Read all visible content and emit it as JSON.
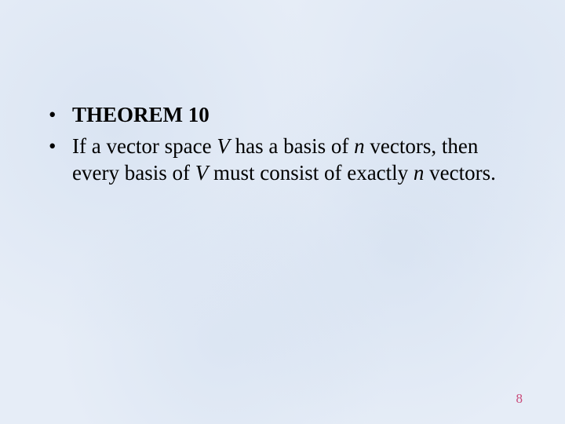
{
  "slide": {
    "background_color": "#e6edf7",
    "text_color": "#000000",
    "pagenum_color": "#c94b7a",
    "font_family": "Times New Roman",
    "title_fontsize": 27,
    "body_fontsize": 27,
    "pagenum_fontsize": 17,
    "bullets": [
      {
        "title": "THEOREM 10"
      },
      {
        "part1": "If a vector space ",
        "var1": "V",
        "part2": " has a basis of ",
        "var2": "n",
        "part3": " vectors, then every basis of ",
        "var3": "V",
        "part4": " must consist of exactly ",
        "var4": "n",
        "part5": " vectors."
      }
    ],
    "page_number": "8"
  }
}
